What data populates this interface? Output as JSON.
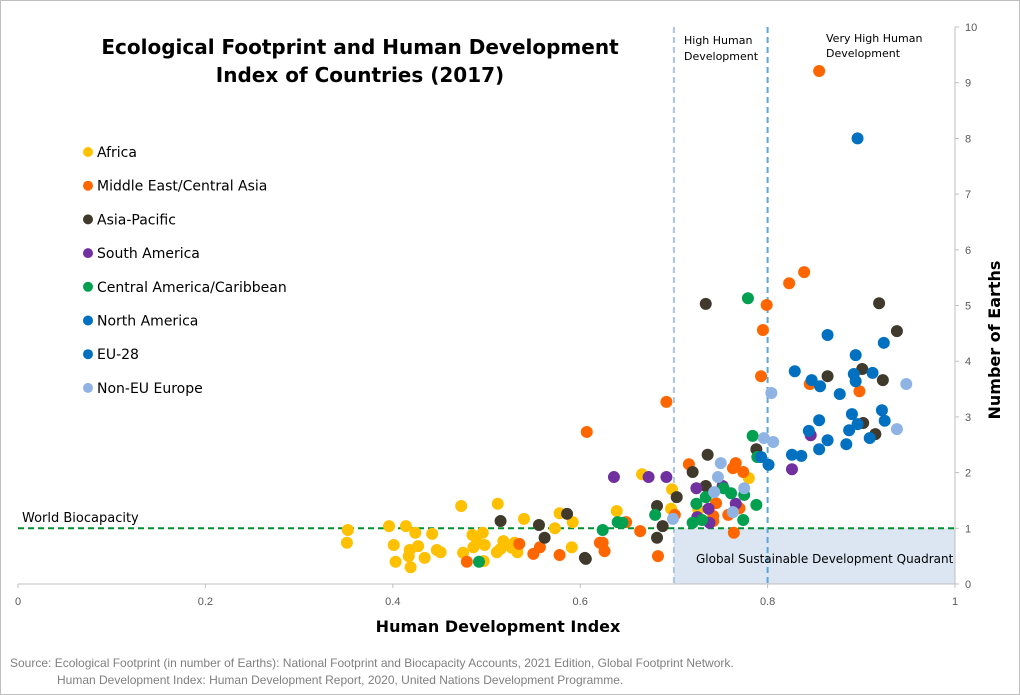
{
  "chart_data": {
    "type": "scatter",
    "title_lines": [
      "Ecological Footprint and Human Development",
      "Index of Countries (2017)"
    ],
    "xlabel": "Human Development Index",
    "ylabel": "Number of Earths",
    "xlim": [
      0,
      1
    ],
    "ylim": [
      0,
      10
    ],
    "x_ticks": [
      "0",
      "0.2",
      "0.4",
      "0.6",
      "0.8",
      "1"
    ],
    "y_ticks": [
      "0",
      "1",
      "2",
      "3",
      "4",
      "5",
      "6",
      "7",
      "8",
      "9",
      "10"
    ],
    "legend_position": "left",
    "annotations": {
      "high_hd": [
        "High Human",
        "Development"
      ],
      "very_high_hd": [
        "Very High Human",
        "Development"
      ],
      "world_biocapacity": "World Biocapacity",
      "quadrant": "Global Sustainable Development Quadrant"
    },
    "reference_lines": {
      "world_biocapacity_y": 1,
      "high_hd_x": 0.7,
      "very_high_hd_x": 0.8
    },
    "series": [
      {
        "name": "Africa",
        "color": "#ffc000",
        "points": [
          [
            0.352,
            0.97
          ],
          [
            0.351,
            0.74
          ],
          [
            0.396,
            1.04
          ],
          [
            0.414,
            1.04
          ],
          [
            0.424,
            0.92
          ],
          [
            0.442,
            0.9
          ],
          [
            0.401,
            0.7
          ],
          [
            0.427,
            0.68
          ],
          [
            0.418,
            0.61
          ],
          [
            0.417,
            0.5
          ],
          [
            0.434,
            0.47
          ],
          [
            0.403,
            0.4
          ],
          [
            0.419,
            0.3
          ],
          [
            0.447,
            0.61
          ],
          [
            0.451,
            0.57
          ],
          [
            0.473,
            1.4
          ],
          [
            0.512,
            1.44
          ],
          [
            0.485,
            0.88
          ],
          [
            0.496,
            0.92
          ],
          [
            0.49,
            0.74
          ],
          [
            0.498,
            0.7
          ],
          [
            0.475,
            0.56
          ],
          [
            0.486,
            0.66
          ],
          [
            0.497,
            0.41
          ],
          [
            0.518,
            0.77
          ],
          [
            0.511,
            0.57
          ],
          [
            0.515,
            0.63
          ],
          [
            0.54,
            1.17
          ],
          [
            0.527,
            0.65
          ],
          [
            0.53,
            0.74
          ],
          [
            0.533,
            0.57
          ],
          [
            0.573,
            1.0
          ],
          [
            0.578,
            1.27
          ],
          [
            0.592,
            1.11
          ],
          [
            0.591,
            0.66
          ],
          [
            0.666,
            1.97
          ],
          [
            0.698,
            1.7
          ],
          [
            0.639,
            1.31
          ],
          [
            0.697,
            1.35
          ],
          [
            0.78,
            1.9
          ],
          [
            0.726,
            1.33
          ]
        ]
      },
      {
        "name": "Middle East/Central Asia",
        "color": "#ff6600",
        "points": [
          [
            0.535,
            0.72
          ],
          [
            0.557,
            0.66
          ],
          [
            0.55,
            0.54
          ],
          [
            0.578,
            0.52
          ],
          [
            0.479,
            0.4
          ],
          [
            0.621,
            0.74
          ],
          [
            0.624,
            0.74
          ],
          [
            0.626,
            0.59
          ],
          [
            0.649,
            1.11
          ],
          [
            0.664,
            0.95
          ],
          [
            0.683,
            0.5
          ],
          [
            0.701,
            1.24
          ],
          [
            0.716,
            2.15
          ],
          [
            0.745,
            1.45
          ],
          [
            0.742,
            1.22
          ],
          [
            0.742,
            1.13
          ],
          [
            0.763,
            2.08
          ],
          [
            0.766,
            2.17
          ],
          [
            0.774,
            2.01
          ],
          [
            0.758,
            1.24
          ],
          [
            0.77,
            1.36
          ],
          [
            0.764,
            0.92
          ],
          [
            0.607,
            2.73
          ],
          [
            0.692,
            3.27
          ],
          [
            0.793,
            3.73
          ],
          [
            0.795,
            4.56
          ],
          [
            0.799,
            5.01
          ],
          [
            0.823,
            5.4
          ],
          [
            0.839,
            5.6
          ],
          [
            0.845,
            3.59
          ],
          [
            0.898,
            3.46
          ],
          [
            0.855,
            9.21
          ]
        ]
      },
      {
        "name": "Asia-Pacific",
        "color": "#403a2c",
        "points": [
          [
            0.515,
            1.13
          ],
          [
            0.556,
            1.06
          ],
          [
            0.562,
            0.83
          ],
          [
            0.586,
            1.26
          ],
          [
            0.606,
            0.45
          ],
          [
            0.605,
            0.47
          ],
          [
            0.682,
            1.4
          ],
          [
            0.703,
            1.56
          ],
          [
            0.682,
            0.83
          ],
          [
            0.688,
            1.04
          ],
          [
            0.72,
            2.01
          ],
          [
            0.736,
            2.32
          ],
          [
            0.734,
            1.76
          ],
          [
            0.734,
            5.03
          ],
          [
            0.788,
            2.42
          ],
          [
            0.864,
            3.73
          ],
          [
            0.901,
            3.86
          ],
          [
            0.923,
            3.66
          ],
          [
            0.938,
            4.54
          ],
          [
            0.902,
            2.89
          ],
          [
            0.915,
            2.69
          ],
          [
            0.919,
            5.04
          ]
        ]
      },
      {
        "name": "South America",
        "color": "#7030a0",
        "points": [
          [
            0.636,
            1.92
          ],
          [
            0.673,
            1.92
          ],
          [
            0.692,
            1.92
          ],
          [
            0.724,
            1.72
          ],
          [
            0.725,
            1.2
          ],
          [
            0.737,
            1.35
          ],
          [
            0.738,
            1.1
          ],
          [
            0.752,
            1.76
          ],
          [
            0.766,
            1.44
          ],
          [
            0.826,
            2.06
          ],
          [
            0.846,
            2.67
          ]
        ]
      },
      {
        "name": "Central America/Caribbean",
        "color": "#00a050",
        "points": [
          [
            0.492,
            0.4
          ],
          [
            0.624,
            0.97
          ],
          [
            0.64,
            1.11
          ],
          [
            0.645,
            1.1
          ],
          [
            0.68,
            1.24
          ],
          [
            0.724,
            1.44
          ],
          [
            0.734,
            1.56
          ],
          [
            0.72,
            1.1
          ],
          [
            0.73,
            1.15
          ],
          [
            0.753,
            1.72
          ],
          [
            0.761,
            1.63
          ],
          [
            0.775,
            1.6
          ],
          [
            0.774,
            1.15
          ],
          [
            0.788,
            1.42
          ],
          [
            0.789,
            2.28
          ],
          [
            0.779,
            5.13
          ],
          [
            0.784,
            2.66
          ]
        ]
      },
      {
        "name": "North America",
        "color": "#0070c0",
        "points": [
          [
            0.896,
            8.0
          ],
          [
            0.864,
            4.47
          ]
        ]
      },
      {
        "name": "EU-28",
        "color": "#0070c0",
        "points": [
          [
            0.924,
            4.33
          ],
          [
            0.894,
            4.11
          ],
          [
            0.829,
            3.82
          ],
          [
            0.847,
            3.66
          ],
          [
            0.856,
            3.55
          ],
          [
            0.892,
            3.77
          ],
          [
            0.894,
            3.64
          ],
          [
            0.912,
            3.79
          ],
          [
            0.877,
            3.41
          ],
          [
            0.922,
            3.12
          ],
          [
            0.925,
            2.93
          ],
          [
            0.89,
            3.05
          ],
          [
            0.896,
            2.87
          ],
          [
            0.887,
            2.76
          ],
          [
            0.855,
            2.94
          ],
          [
            0.844,
            2.75
          ],
          [
            0.909,
            2.62
          ],
          [
            0.864,
            2.58
          ],
          [
            0.884,
            2.51
          ],
          [
            0.855,
            2.42
          ],
          [
            0.826,
            2.32
          ],
          [
            0.836,
            2.3
          ],
          [
            0.793,
            2.28
          ],
          [
            0.801,
            2.14
          ]
        ]
      },
      {
        "name": "Non-EU Europe",
        "color": "#8fb4e3",
        "points": [
          [
            0.804,
            3.43
          ],
          [
            0.948,
            3.59
          ],
          [
            0.938,
            2.78
          ],
          [
            0.796,
            2.62
          ],
          [
            0.806,
            2.55
          ],
          [
            0.75,
            2.17
          ],
          [
            0.747,
            1.92
          ],
          [
            0.743,
            1.65
          ],
          [
            0.775,
            1.72
          ],
          [
            0.763,
            1.29
          ],
          [
            0.699,
            1.17
          ]
        ]
      }
    ],
    "source_lines": [
      "Source: Ecological Footprint (in number of Earths): National Footprint and Biocapacity Accounts, 2021 Edition, Global Footprint Network.",
      "Human Development Index: Human Development Report, 2020, United Nations Development Programme."
    ]
  }
}
